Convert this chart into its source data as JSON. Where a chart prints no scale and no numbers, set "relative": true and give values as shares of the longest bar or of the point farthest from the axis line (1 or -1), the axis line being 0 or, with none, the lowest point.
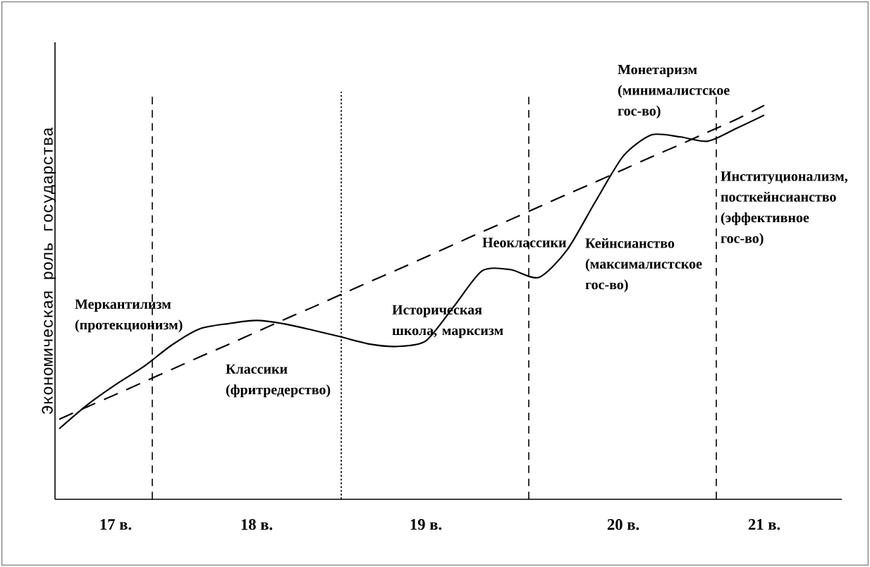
{
  "chart_data": {
    "type": "line",
    "relative": true,
    "ylabel": "Экономическая роль государства",
    "categories": [
      null,
      null,
      "17 в.",
      null,
      null,
      null,
      null,
      "18 в.",
      null,
      null,
      null,
      null,
      null,
      "19 в.",
      null,
      null,
      null,
      null,
      null,
      null,
      "20 в.",
      null,
      null,
      null,
      null,
      "21 в.",
      null,
      null
    ],
    "series": [
      {
        "color": "#000000",
        "line_style": "solid",
        "values": [
          0.179,
          0.24,
          0.291,
          0.337,
          0.392,
          0.433,
          0.446,
          0.454,
          0.445,
          0.429,
          0.412,
          0.394,
          0.388,
          0.402,
          0.49,
          0.58,
          0.583,
          0.563,
          0.632,
          0.754,
          0.871,
          0.925,
          0.92,
          0.909,
          0.941,
          0.975,
          null,
          null
        ]
      },
      {
        "color": "#000000",
        "line_style": "dashed",
        "values": [
          0.203,
          0.235,
          0.266,
          0.298,
          0.33,
          0.362,
          0.393,
          0.425,
          0.457,
          0.488,
          0.52,
          0.552,
          0.583,
          0.615,
          0.647,
          0.679,
          0.71,
          0.742,
          0.774,
          0.805,
          0.837,
          0.869,
          0.9,
          0.932,
          0.964,
          1.0,
          null,
          null
        ]
      }
    ],
    "annotations": [
      "Меркантилизм (протекционизм)",
      "Классики (фритредерство)",
      "Историческая школа, марксизм",
      "Неоклассики",
      "Кейнсианство (максималистское гос-во)",
      "Монетаризм (минималистское гос-во)",
      "Институционализм, посткейнсианство (эффективное гос-во)"
    ],
    "grid": "x",
    "marker": "none"
  }
}
